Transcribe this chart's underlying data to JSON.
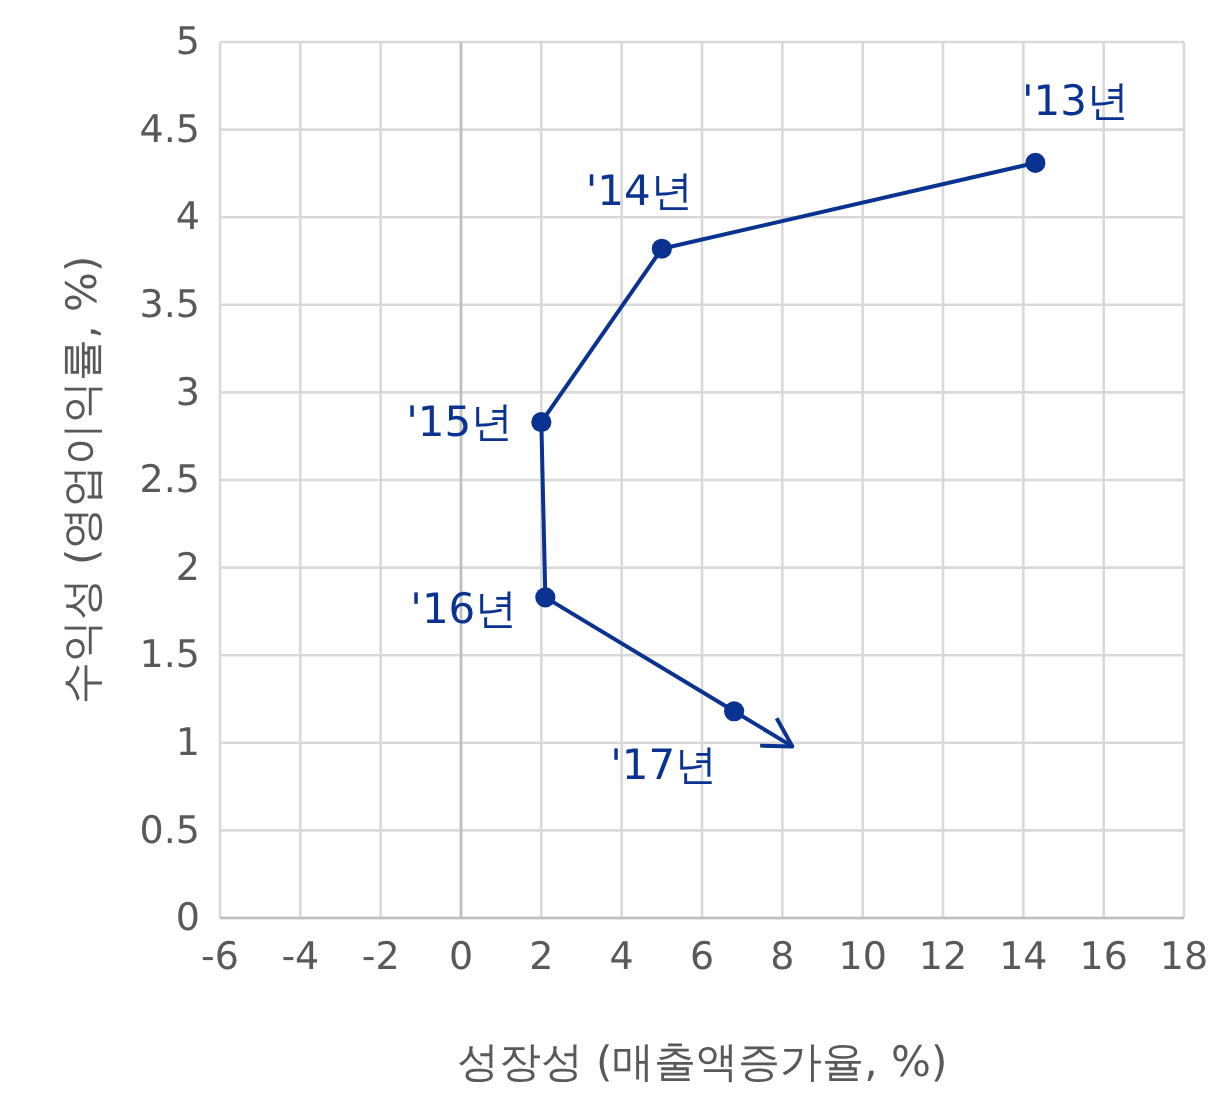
{
  "chart_data": {
    "type": "line",
    "xlabel": "성장성 (매출액증가율, %)",
    "ylabel": "수익성 (영업이익률, %)",
    "x": [
      14.3,
      5.0,
      2.0,
      2.1,
      6.8
    ],
    "series": [
      {
        "color": "#0a3391",
        "values": [
          4.31,
          3.82,
          2.83,
          1.83,
          1.18
        ]
      }
    ],
    "annotations": [
      {
        "text": "'13년",
        "x": 14.3,
        "y": 4.31
      },
      {
        "text": "'14년",
        "x": 5.0,
        "y": 3.82
      },
      {
        "text": "'15년",
        "x": 2.0,
        "y": 2.83
      },
      {
        "text": "'16년",
        "x": 2.1,
        "y": 1.83
      },
      {
        "text": "'17년",
        "x": 6.8,
        "y": 1.18
      }
    ],
    "xlim": [
      -6,
      18
    ],
    "xticks": [
      -6,
      -4,
      -2,
      0,
      2,
      4,
      6,
      8,
      10,
      12,
      14,
      16,
      18
    ],
    "ylim": [
      0,
      5
    ],
    "yticks": [
      0,
      0.5,
      1,
      1.5,
      2,
      2.5,
      3,
      3.5,
      4,
      4.5,
      5
    ],
    "grid": true,
    "marker": "circle",
    "line_style": "solid"
  }
}
